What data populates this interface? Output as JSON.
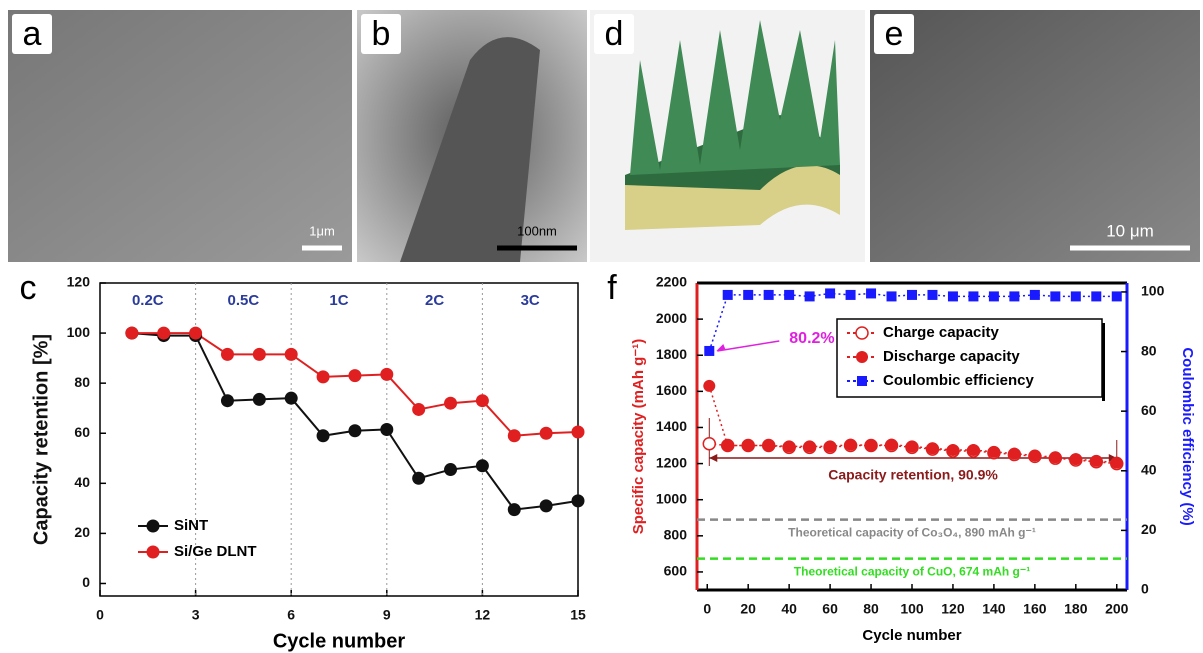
{
  "image_panels": [
    {
      "label": "a",
      "scale_bar": "1μm"
    },
    {
      "label": "b",
      "scale_bar": "100nm"
    },
    {
      "label": "d"
    },
    {
      "label": "e",
      "scale_bar": "10 μm"
    }
  ],
  "chart_data": [
    {
      "type": "line",
      "label": "c",
      "xlabel": "Cycle number",
      "ylabel": "Capacity retention [%]",
      "x": [
        1,
        2,
        3,
        4,
        5,
        6,
        7,
        8,
        9,
        10,
        11,
        12,
        13,
        14,
        15
      ],
      "series": [
        {
          "name": "SiNT",
          "color": "#111111",
          "marker": "circle",
          "values": [
            100,
            99,
            99,
            73,
            73.5,
            74,
            59,
            61,
            61.5,
            42,
            45.5,
            47,
            29.5,
            31,
            33
          ]
        },
        {
          "name": "Si/Ge DLNT",
          "color": "#e02020",
          "marker": "circle",
          "values": [
            100,
            100,
            100,
            91.5,
            91.5,
            91.5,
            82.5,
            83,
            83.5,
            69.5,
            72,
            73,
            59,
            60,
            60.5
          ]
        }
      ],
      "rate_labels": [
        "0.2C",
        "0.5C",
        "1C",
        "2C",
        "3C"
      ],
      "rate_boundaries": [
        3,
        6,
        9,
        12
      ],
      "rate_color": "#2a3b9c",
      "xlim": [
        0,
        15
      ],
      "xticks": [
        0,
        3,
        6,
        9,
        12,
        15
      ],
      "ylim": [
        -5,
        120
      ],
      "yticks": [
        0,
        20,
        40,
        60,
        80,
        100,
        120
      ],
      "legend": "lower left"
    },
    {
      "type": "line",
      "label": "f",
      "xlabel": "Cycle number",
      "ylabel": "Specific capacity (mAh g⁻¹)",
      "y2label": "Coulombic efficiency (%)",
      "x": [
        1,
        10,
        20,
        30,
        40,
        50,
        60,
        70,
        80,
        90,
        100,
        110,
        120,
        130,
        140,
        150,
        160,
        170,
        180,
        190,
        200
      ],
      "series": [
        {
          "name": "Charge capacity",
          "color": "#e02020",
          "marker": "open-circle",
          "values": [
            1310,
            1300,
            1300,
            1300,
            1290,
            1290,
            1290,
            1300,
            1300,
            1300,
            1290,
            1280,
            1270,
            1270,
            1260,
            1250,
            1240,
            1230,
            1220,
            1210,
            1200
          ]
        },
        {
          "name": "Discharge capacity",
          "color": "#e02020",
          "marker": "circle",
          "values": [
            1630,
            1300,
            1300,
            1300,
            1295,
            1295,
            1295,
            1305,
            1300,
            1305,
            1295,
            1285,
            1275,
            1275,
            1265,
            1255,
            1245,
            1235,
            1225,
            1215,
            1205
          ]
        },
        {
          "name": "Coulombic efficiency",
          "color": "#1a1aff",
          "marker": "square",
          "axis": "y2",
          "values": [
            80.2,
            99,
            99,
            99,
            99,
            98.5,
            99.5,
            99,
            99.5,
            98.5,
            99,
            99,
            98.5,
            98.5,
            98.5,
            98.5,
            99,
            98.5,
            98.5,
            98.5,
            98.5
          ],
          "value_labels": [
            "80.2%",
            null,
            null,
            null,
            null,
            null,
            null,
            null,
            null,
            null,
            null,
            null,
            null,
            null,
            null,
            null,
            null,
            null,
            null,
            null,
            null
          ],
          "label_color": "#e020e0"
        }
      ],
      "reference_lines": [
        {
          "value": 890,
          "label": "Theoretical capacity of Co₃O₄, 890 mAh g⁻¹",
          "color": "#888888"
        },
        {
          "value": 674,
          "label": "Theoretical capacity of CuO, 674 mAh g⁻¹",
          "color": "#33dd22"
        }
      ],
      "annotation": "Capacity retention, 90.9%",
      "annotation_color": "#8b1a1a",
      "ylabel_color": "#e02020",
      "y2label_color": "#1a1aff",
      "xlim": [
        -5,
        205
      ],
      "xticks": [
        0,
        20,
        40,
        60,
        80,
        100,
        120,
        140,
        160,
        180,
        200
      ],
      "ylim": [
        500,
        2200
      ],
      "yticks": [
        600,
        800,
        1000,
        1200,
        1400,
        1600,
        1800,
        2000,
        2200
      ],
      "y2lim": [
        0,
        103
      ],
      "y2ticks": [
        0,
        20,
        40,
        60,
        80,
        100
      ],
      "legend": "upper right"
    }
  ]
}
